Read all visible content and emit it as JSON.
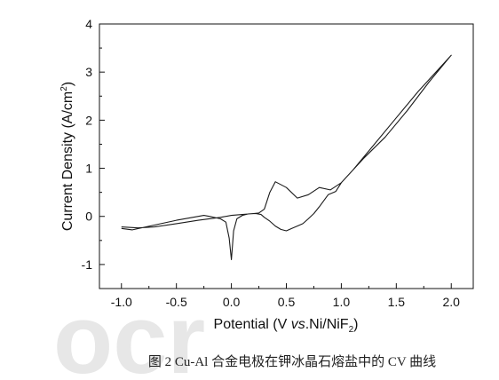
{
  "chart_data": {
    "type": "line",
    "title": "",
    "xlabel_parts": [
      "Potential (V ",
      "vs",
      ".Ni/NiF",
      "2",
      ")"
    ],
    "ylabel_parts": [
      "Current Density (A/cm",
      "2",
      ")"
    ],
    "xlim": [
      -1.2,
      2.2
    ],
    "ylim": [
      -1.5,
      4
    ],
    "xticks": [
      "-1.0",
      "-0.5",
      "0.0",
      "0.5",
      "1.0",
      "1.5",
      "2.0"
    ],
    "xtick_values": [
      -1.0,
      -0.5,
      0.0,
      0.5,
      1.0,
      1.5,
      2.0
    ],
    "yticks": [
      "-1",
      "0",
      "1",
      "2",
      "3",
      "4"
    ],
    "ytick_values": [
      -1,
      0,
      1,
      2,
      3,
      4
    ],
    "minor_x_step": 0.25,
    "minor_y_step": 0.5,
    "grid": false,
    "line_color": "#1a1a1a",
    "series": [
      {
        "x": [
          -1.0,
          -0.85,
          -0.7,
          -0.5,
          -0.3,
          -0.1,
          0.0,
          0.1,
          0.2,
          0.25,
          0.3,
          0.35,
          0.4,
          0.5,
          0.6,
          0.7,
          0.8,
          0.9,
          1.0,
          1.2,
          1.4,
          1.6,
          1.8,
          2.0,
          1.98,
          1.9,
          1.7,
          1.5,
          1.3,
          1.1,
          1.0,
          0.95,
          0.88,
          0.8,
          0.75,
          0.7,
          0.65,
          0.55,
          0.5,
          0.45,
          0.4,
          0.35,
          0.3,
          0.27,
          0.22,
          0.15,
          0.1,
          0.05,
          0.02,
          0.0,
          -0.02,
          -0.05,
          -0.1,
          -0.2,
          -0.25,
          -0.3,
          -0.5,
          -0.7,
          -0.9,
          -1.0
        ],
        "y": [
          -0.22,
          -0.24,
          -0.22,
          -0.15,
          -0.08,
          -0.02,
          0.02,
          0.04,
          0.06,
          0.07,
          0.15,
          0.5,
          0.72,
          0.6,
          0.38,
          0.45,
          0.6,
          0.55,
          0.7,
          1.2,
          1.65,
          2.2,
          2.8,
          3.35,
          3.3,
          3.1,
          2.6,
          2.05,
          1.5,
          0.95,
          0.7,
          0.52,
          0.45,
          0.2,
          0.06,
          -0.05,
          -0.15,
          -0.25,
          -0.3,
          -0.27,
          -0.2,
          -0.1,
          -0.02,
          0.04,
          0.06,
          0.05,
          0.02,
          -0.05,
          -0.3,
          -0.9,
          -0.45,
          -0.12,
          -0.05,
          0.0,
          0.02,
          0.0,
          -0.08,
          -0.18,
          -0.28,
          -0.25
        ]
      }
    ]
  },
  "caption": "图 2 Cu-Al 合金电极在钾冰晶石熔盐中的 CV 曲线",
  "watermark": "ocr"
}
